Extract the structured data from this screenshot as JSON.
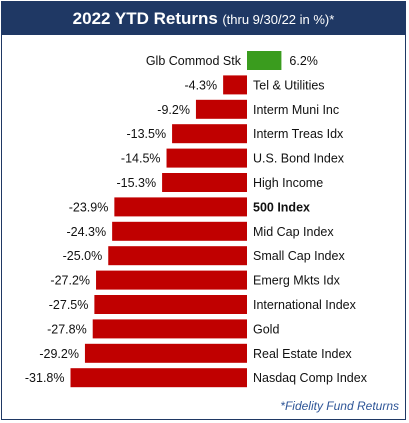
{
  "header": {
    "title": "2022 YTD Returns",
    "subtitle": "(thru 9/30/22 in %)*"
  },
  "footnote": "*Fidelity Fund Returns",
  "colors": {
    "positive": "#3a9c1e",
    "negative": "#c00000",
    "header_bg": "#1f3864",
    "footnote": "#2e5597"
  },
  "chart_data": {
    "type": "bar",
    "orientation": "horizontal",
    "title": "2022 YTD Returns (thru 9/30/22 in %)*",
    "categories": [
      "Glb Commod Stk",
      "Tel & Utilities",
      "Interm Muni Inc",
      "Interm Treas Idx",
      "U.S. Bond Index",
      "High Income",
      "500 Index",
      "Mid Cap Index",
      "Small Cap Index",
      "Emerg Mkts Idx",
      "International Index",
      "Gold",
      "Real Estate Index",
      "Nasdaq Comp Index"
    ],
    "values": [
      6.2,
      -4.3,
      -9.2,
      -13.5,
      -14.5,
      -15.3,
      -23.9,
      -24.3,
      -25.0,
      -27.2,
      -27.5,
      -27.8,
      -29.2,
      -31.8
    ],
    "value_labels": [
      "6.2%",
      "-4.3%",
      "-9.2%",
      "-13.5%",
      "-14.5%",
      "-15.3%",
      "-23.9%",
      "-24.3%",
      "-25.0%",
      "-27.2%",
      "-27.5%",
      "-27.8%",
      "-29.2%",
      "-31.8%"
    ],
    "bold_category": "500 Index",
    "xlim": [
      -31.8,
      6.2
    ],
    "grid": false,
    "legend": "none"
  }
}
